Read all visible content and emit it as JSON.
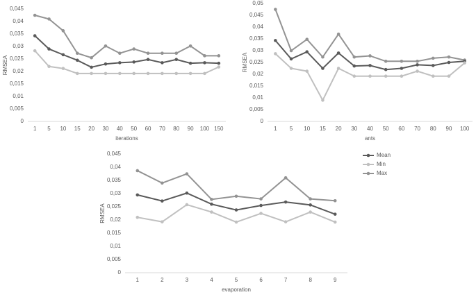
{
  "chart_data": [
    {
      "type": "line",
      "ylabel": "RMSEA",
      "xlabel": "iterations",
      "categories": [
        "1",
        "5",
        "10",
        "15",
        "20",
        "30",
        "40",
        "50",
        "60",
        "70",
        "80",
        "90",
        "100",
        "150"
      ],
      "ylim": [
        0,
        0.045
      ],
      "yticks": [
        0,
        {
          "value": 0.005,
          "label": "0,005"
        },
        {
          "value": 0.01,
          "label": "0,01"
        },
        {
          "value": 0.015,
          "label": "0,015"
        },
        {
          "value": 0.02,
          "label": "0,02"
        },
        {
          "value": 0.025,
          "label": "0,025"
        },
        {
          "value": 0.03,
          "label": "0,03"
        },
        {
          "value": 0.035,
          "label": "0,035"
        },
        {
          "value": 0.04,
          "label": "0,04"
        },
        {
          "value": 0.045,
          "label": "0,045"
        }
      ],
      "series": [
        {
          "color": "#939393",
          "values": [
            0.0425,
            0.041,
            0.0363,
            0.0273,
            0.0255,
            0.0302,
            0.0273,
            0.029,
            0.0273,
            0.0273,
            0.0273,
            0.0302,
            0.0263,
            0.0263
          ]
        },
        {
          "color": "#5a5a5a",
          "values": [
            0.0343,
            0.029,
            0.0267,
            0.0245,
            0.0217,
            0.023,
            0.0235,
            0.0238,
            0.0248,
            0.0235,
            0.0248,
            0.0233,
            0.0235,
            0.0233
          ]
        },
        {
          "color": "#c0c0c0",
          "values": [
            0.0283,
            0.022,
            0.0212,
            0.0192,
            0.0192,
            0.0192,
            0.0192,
            0.0192,
            0.0192,
            0.0192,
            0.0192,
            0.0192,
            0.0192,
            0.0218
          ]
        }
      ]
    },
    {
      "type": "line",
      "ylabel": "RMSEA",
      "xlabel": "ants",
      "categories": [
        "1",
        "5",
        "10",
        "15",
        "20",
        "30",
        "40",
        "50",
        "60",
        "70",
        "80",
        "90",
        "100"
      ],
      "ylim": [
        0,
        0.05
      ],
      "yticks": [
        0,
        {
          "value": 0.005,
          "label": "0,005"
        },
        {
          "value": 0.01,
          "label": "0,01"
        },
        {
          "value": 0.015,
          "label": "0,015"
        },
        {
          "value": 0.02,
          "label": "0,02"
        },
        {
          "value": 0.025,
          "label": "0,025"
        },
        {
          "value": 0.03,
          "label": "0,03"
        },
        {
          "value": 0.035,
          "label": "0,035"
        },
        {
          "value": 0.04,
          "label": "0,04"
        },
        {
          "value": 0.045,
          "label": "0,045"
        },
        {
          "value": 0.05,
          "label": "0,05"
        }
      ],
      "series": [
        {
          "color": "#939393",
          "values": [
            0.0475,
            0.03,
            0.0348,
            0.0273,
            0.037,
            0.0273,
            0.0278,
            0.0255,
            0.0255,
            0.0255,
            0.0268,
            0.0273,
            0.026
          ]
        },
        {
          "color": "#5a5a5a",
          "values": [
            0.0343,
            0.0265,
            0.0295,
            0.0225,
            0.029,
            0.0235,
            0.0237,
            0.022,
            0.0225,
            0.024,
            0.0237,
            0.025,
            0.0255
          ]
        },
        {
          "color": "#c0c0c0",
          "values": [
            0.0287,
            0.0225,
            0.0213,
            0.009,
            0.0225,
            0.0192,
            0.0192,
            0.0192,
            0.0192,
            0.0213,
            0.0192,
            0.0192,
            0.0248
          ]
        }
      ]
    },
    {
      "type": "line",
      "ylabel": "RMSEA",
      "xlabel": "evaporation",
      "categories": [
        "1",
        "2",
        "3",
        "4",
        "5",
        "6",
        "7",
        "8",
        "9"
      ],
      "ylim": [
        0,
        0.045
      ],
      "yticks": [
        0,
        {
          "value": 0.005,
          "label": "0,005"
        },
        {
          "value": 0.01,
          "label": "0,01"
        },
        {
          "value": 0.015,
          "label": "0,015"
        },
        {
          "value": 0.02,
          "label": "0,02"
        },
        {
          "value": 0.025,
          "label": "0,025"
        },
        {
          "value": 0.03,
          "label": "0,03"
        },
        {
          "value": 0.035,
          "label": "0,035"
        },
        {
          "value": 0.04,
          "label": "0,04"
        },
        {
          "value": 0.045,
          "label": "0,045"
        }
      ],
      "legend": "right",
      "series": [
        {
          "name": "Mean",
          "color": "#5a5a5a",
          "values": [
            0.0295,
            0.0272,
            0.0302,
            0.026,
            0.0238,
            0.0255,
            0.0268,
            0.0257,
            0.0222
          ]
        },
        {
          "name": "Min",
          "color": "#c0c0c0",
          "values": [
            0.021,
            0.0193,
            0.0258,
            0.023,
            0.0192,
            0.0225,
            0.0193,
            0.023,
            0.0192
          ]
        },
        {
          "name": "Max",
          "color": "#939393",
          "values": [
            0.0387,
            0.034,
            0.0375,
            0.0278,
            0.029,
            0.028,
            0.036,
            0.028,
            0.0273
          ]
        }
      ]
    }
  ]
}
